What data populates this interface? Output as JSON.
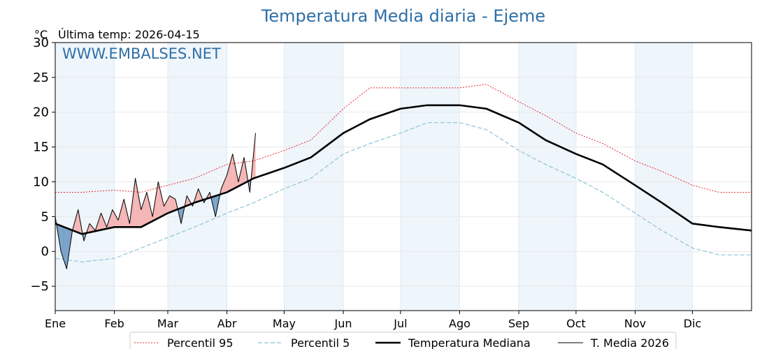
{
  "chart_data": {
    "type": "line",
    "title": "Temperatura Media diaria - Ejeme",
    "unit_label": "°C",
    "subtitle": "Última temp: 2026-04-15",
    "watermark": "WWW.EMBALSES.NET",
    "ylim": [
      -8.5,
      30
    ],
    "xlim_days": [
      1,
      366
    ],
    "yticks": [
      30,
      25,
      20,
      15,
      10,
      5,
      0,
      -5
    ],
    "ytick_labels": [
      "30",
      "25",
      "20",
      "15",
      "10",
      "5",
      "0",
      "−5"
    ],
    "month_labels": [
      "Ene",
      "Feb",
      "Mar",
      "Abr",
      "May",
      "Jun",
      "Jul",
      "Ago",
      "Sep",
      "Oct",
      "Nov",
      "Dic"
    ],
    "grid": true,
    "legend_position": "bottom-center",
    "colors": {
      "p95": "#e8262b",
      "p5": "#8ec3d8",
      "median": "#000000",
      "current": "#000000",
      "above_fill": "#f4b6b6",
      "below_fill": "#7aa3c9",
      "band": "#eef5fb",
      "title": "#2f6fa6"
    },
    "series": [
      {
        "key": "p95",
        "name": "Percentil 95",
        "x": [
          1,
          15,
          32,
          46,
          60,
          74,
          91,
          105,
          121,
          135,
          152,
          166,
          182,
          196,
          213,
          227,
          244,
          258,
          274,
          288,
          305,
          319,
          335,
          349,
          366
        ],
        "values": [
          8.5,
          8.5,
          8.8,
          8.5,
          9.5,
          10.5,
          12.5,
          13.0,
          14.5,
          16.0,
          20.5,
          23.5,
          23.5,
          23.5,
          23.5,
          24.0,
          21.5,
          19.5,
          17.0,
          15.5,
          13.0,
          11.5,
          9.5,
          8.5,
          8.5
        ]
      },
      {
        "key": "p5",
        "name": "Percentil 5",
        "x": [
          1,
          15,
          32,
          46,
          60,
          74,
          91,
          105,
          121,
          135,
          152,
          166,
          182,
          196,
          213,
          227,
          244,
          258,
          274,
          288,
          305,
          319,
          335,
          349,
          366
        ],
        "values": [
          -1.0,
          -1.5,
          -1.0,
          0.5,
          2.0,
          3.5,
          5.5,
          7.0,
          9.0,
          10.5,
          14.0,
          15.5,
          17.0,
          18.5,
          18.5,
          17.5,
          14.5,
          12.5,
          10.5,
          8.5,
          5.5,
          3.0,
          0.5,
          -0.5,
          -0.5
        ]
      },
      {
        "key": "median",
        "name": "Temperatura Mediana",
        "x": [
          1,
          15,
          32,
          46,
          60,
          74,
          91,
          105,
          121,
          135,
          152,
          166,
          182,
          196,
          213,
          227,
          244,
          258,
          274,
          288,
          305,
          319,
          335,
          349,
          366
        ],
        "values": [
          4.0,
          2.5,
          3.5,
          3.5,
          5.5,
          7.0,
          8.5,
          10.5,
          12.0,
          13.5,
          17.0,
          19.0,
          20.5,
          21.0,
          21.0,
          20.5,
          18.5,
          16.0,
          14.0,
          12.5,
          9.5,
          7.0,
          4.0,
          3.5,
          3.0
        ]
      },
      {
        "key": "current",
        "name": "T. Media 2026",
        "x": [
          1,
          4,
          7,
          10,
          13,
          16,
          19,
          22,
          25,
          28,
          31,
          34,
          37,
          40,
          43,
          46,
          49,
          52,
          55,
          58,
          61,
          64,
          67,
          70,
          73,
          76,
          79,
          82,
          85,
          88,
          91,
          94,
          97,
          100,
          103,
          106
        ],
        "values": [
          5.0,
          0.0,
          -2.5,
          3.0,
          6.0,
          1.5,
          4.0,
          3.0,
          5.5,
          3.5,
          6.0,
          4.5,
          7.5,
          4.0,
          10.5,
          6.0,
          8.5,
          5.0,
          10.0,
          6.5,
          8.0,
          7.5,
          4.0,
          8.0,
          6.5,
          9.0,
          7.0,
          8.5,
          5.0,
          9.0,
          11.0,
          14.0,
          10.0,
          13.5,
          8.5,
          17.0
        ]
      }
    ]
  }
}
